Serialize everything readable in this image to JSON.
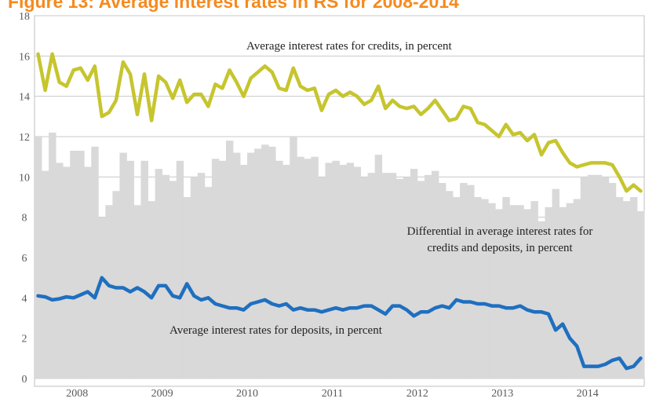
{
  "header": {
    "title": "Figure 13: Average interest rates in RS for 2008-2014"
  },
  "chart_data": {
    "type": "area",
    "title": "Figure 13: Average interest rates in RS for 2008-2014",
    "xlabel": "",
    "ylabel": "",
    "ylim": [
      0,
      18
    ],
    "yticks": [
      "0",
      "2",
      "4",
      "6",
      "8",
      "10",
      "12",
      "14",
      "16",
      "18"
    ],
    "xticks": [
      "2008",
      "2009",
      "2010",
      "2011",
      "2012",
      "2013",
      "2014"
    ],
    "x_start": "2008-01",
    "frequency": "monthly",
    "grid": true,
    "annotations": {
      "credits": "Average interest rates for credits, in percent",
      "differential_line1": "Differential in average interest rates for",
      "differential_line2": "credits and deposits, in percent",
      "deposits": "Average interest rates for deposits, in percent"
    },
    "colors": {
      "credits": "#c6c52e",
      "deposits": "#1f6fc0",
      "differential": "#d9d9d9",
      "title": "#f58a1f"
    },
    "series": [
      {
        "key": "credits",
        "type": "line",
        "values": [
          16.1,
          14.3,
          16.1,
          14.7,
          14.5,
          15.3,
          15.4,
          14.8,
          15.5,
          13.0,
          13.2,
          13.8,
          15.7,
          15.1,
          13.1,
          15.1,
          12.8,
          15.0,
          14.7,
          13.9,
          14.8,
          13.7,
          14.1,
          14.1,
          13.5,
          14.6,
          14.4,
          15.3,
          14.7,
          14.0,
          14.9,
          15.2,
          15.5,
          15.2,
          14.4,
          14.3,
          15.4,
          14.5,
          14.3,
          14.4,
          13.3,
          14.1,
          14.3,
          14.0,
          14.2,
          14.0,
          13.6,
          13.8,
          14.5,
          13.4,
          13.8,
          13.5,
          13.4,
          13.5,
          13.1,
          13.4,
          13.8,
          13.3,
          12.8,
          12.9,
          13.5,
          13.4,
          12.7,
          12.6,
          12.3,
          12.0,
          12.6,
          12.1,
          12.2,
          11.8,
          12.1,
          11.1,
          11.7,
          11.8,
          11.2,
          10.7,
          10.5,
          10.6,
          10.7,
          10.7,
          10.7,
          10.6,
          10.0,
          9.3,
          9.6,
          9.3
        ]
      },
      {
        "key": "deposits",
        "type": "line",
        "values": [
          4.1,
          4.05,
          3.9,
          3.95,
          4.05,
          4.0,
          4.15,
          4.3,
          4.0,
          5.0,
          4.6,
          4.5,
          4.5,
          4.3,
          4.5,
          4.3,
          4.0,
          4.6,
          4.6,
          4.1,
          4.0,
          4.7,
          4.1,
          3.9,
          4.0,
          3.7,
          3.6,
          3.5,
          3.5,
          3.4,
          3.7,
          3.8,
          3.9,
          3.7,
          3.6,
          3.7,
          3.4,
          3.5,
          3.4,
          3.4,
          3.3,
          3.4,
          3.5,
          3.4,
          3.5,
          3.5,
          3.6,
          3.6,
          3.4,
          3.2,
          3.6,
          3.6,
          3.4,
          3.1,
          3.3,
          3.3,
          3.5,
          3.6,
          3.5,
          3.9,
          3.8,
          3.8,
          3.7,
          3.7,
          3.6,
          3.6,
          3.5,
          3.5,
          3.6,
          3.4,
          3.3,
          3.3,
          3.2,
          2.4,
          2.7,
          2.0,
          1.6,
          0.6,
          0.6,
          0.6,
          0.7,
          0.9,
          1.0,
          0.5,
          0.6,
          1.0
        ]
      },
      {
        "key": "differential",
        "type": "bar",
        "values": [
          12.0,
          10.3,
          12.2,
          10.7,
          10.5,
          11.3,
          11.3,
          10.5,
          11.5,
          8.0,
          8.6,
          9.3,
          11.2,
          10.8,
          8.6,
          10.8,
          8.8,
          10.4,
          10.1,
          9.8,
          10.8,
          9.0,
          10.0,
          10.2,
          9.5,
          10.9,
          10.8,
          11.8,
          11.2,
          10.6,
          11.2,
          11.4,
          11.6,
          11.5,
          10.8,
          10.6,
          12.0,
          11.0,
          10.9,
          11.0,
          10.0,
          10.7,
          10.8,
          10.6,
          10.7,
          10.5,
          10.0,
          10.2,
          11.1,
          10.2,
          10.2,
          9.9,
          10.0,
          10.4,
          9.8,
          10.1,
          10.3,
          9.7,
          9.3,
          9.0,
          9.7,
          9.6,
          9.0,
          8.9,
          8.7,
          8.4,
          9.0,
          8.6,
          8.6,
          8.4,
          8.8,
          7.8,
          8.5,
          9.4,
          8.5,
          8.7,
          8.9,
          10.0,
          10.1,
          10.1,
          10.0,
          9.7,
          9.0,
          8.8,
          9.0,
          8.3
        ]
      }
    ]
  }
}
